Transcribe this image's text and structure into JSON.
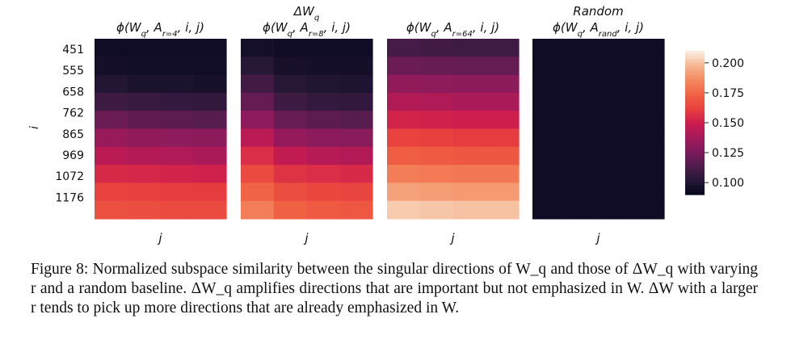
{
  "chart_data": {
    "type": "heatmap",
    "rows_label": "i",
    "row_ticks": [
      "451",
      "555",
      "658",
      "762",
      "865",
      "969",
      "1072",
      "1176"
    ],
    "colorbar": {
      "ticks": [
        "0.200",
        "0.175",
        "0.150",
        "0.125",
        "0.100"
      ],
      "tick_values": [
        0.2,
        0.175,
        0.15,
        0.125,
        0.1
      ],
      "range": [
        0.09,
        0.21
      ],
      "colormap": "rocket",
      "stops": [
        "#03051a",
        "#231634",
        "#4c1d4b",
        "#7b1b5a",
        "#a11a5b",
        "#cb1b4f",
        "#e83f3f",
        "#f06043",
        "#f4875e",
        "#f6b48e",
        "#faebdd"
      ]
    },
    "panels": [
      {
        "super_title": "",
        "title": "ϕ(W_q, A_{r=4}, i, j)",
        "xlabel": "j",
        "values": [
          [
            0.095,
            0.095,
            0.095,
            0.095
          ],
          [
            0.097,
            0.096,
            0.096,
            0.096
          ],
          [
            0.102,
            0.099,
            0.099,
            0.098
          ],
          [
            0.11,
            0.108,
            0.107,
            0.106
          ],
          [
            0.122,
            0.119,
            0.118,
            0.117
          ],
          [
            0.135,
            0.133,
            0.132,
            0.131
          ],
          [
            0.145,
            0.143,
            0.142,
            0.141
          ],
          [
            0.155,
            0.154,
            0.153,
            0.152
          ],
          [
            0.163,
            0.162,
            0.161,
            0.161
          ],
          [
            0.168,
            0.167,
            0.166,
            0.166
          ]
        ]
      },
      {
        "super_title": "ΔW_q",
        "title": "ϕ(W_q, A_{r=8}, i, j)",
        "xlabel": "j",
        "values": [
          [
            0.097,
            0.095,
            0.095,
            0.095
          ],
          [
            0.103,
            0.098,
            0.097,
            0.097
          ],
          [
            0.111,
            0.103,
            0.101,
            0.1
          ],
          [
            0.12,
            0.11,
            0.107,
            0.106
          ],
          [
            0.132,
            0.121,
            0.118,
            0.117
          ],
          [
            0.145,
            0.134,
            0.131,
            0.13
          ],
          [
            0.156,
            0.147,
            0.144,
            0.143
          ],
          [
            0.166,
            0.158,
            0.156,
            0.155
          ],
          [
            0.175,
            0.167,
            0.165,
            0.164
          ],
          [
            0.183,
            0.174,
            0.172,
            0.171
          ]
        ]
      },
      {
        "super_title": "",
        "title": "ϕ(W_q, A_{r=64}, i, j)",
        "xlabel": "j",
        "values": [
          [
            0.112,
            0.111,
            0.11,
            0.11
          ],
          [
            0.122,
            0.121,
            0.12,
            0.12
          ],
          [
            0.133,
            0.132,
            0.131,
            0.131
          ],
          [
            0.143,
            0.142,
            0.141,
            0.141
          ],
          [
            0.153,
            0.152,
            0.151,
            0.151
          ],
          [
            0.163,
            0.162,
            0.161,
            0.161
          ],
          [
            0.173,
            0.172,
            0.171,
            0.171
          ],
          [
            0.183,
            0.182,
            0.181,
            0.181
          ],
          [
            0.193,
            0.192,
            0.191,
            0.191
          ],
          [
            0.203,
            0.202,
            0.201,
            0.201
          ]
        ]
      },
      {
        "super_title": "Random",
        "title": "ϕ(W_q, A_{rand}, i, j)",
        "xlabel": "j",
        "values": [
          [
            0.095,
            0.095,
            0.095,
            0.095
          ],
          [
            0.095,
            0.095,
            0.095,
            0.095
          ],
          [
            0.095,
            0.095,
            0.095,
            0.095
          ],
          [
            0.095,
            0.095,
            0.095,
            0.095
          ],
          [
            0.095,
            0.095,
            0.095,
            0.095
          ],
          [
            0.095,
            0.095,
            0.095,
            0.095
          ],
          [
            0.095,
            0.095,
            0.095,
            0.095
          ],
          [
            0.095,
            0.095,
            0.095,
            0.095
          ],
          [
            0.095,
            0.095,
            0.095,
            0.095
          ],
          [
            0.095,
            0.095,
            0.095,
            0.095
          ]
        ]
      }
    ]
  },
  "caption": {
    "label": "Figure 8:",
    "text": "Normalized subspace similarity between the singular directions of W_q and those of ΔW_q with varying r and a random baseline. ΔW_q amplifies directions that are important but not emphasized in W. ΔW with a larger r tends to pick up more directions that are already emphasized in W."
  }
}
